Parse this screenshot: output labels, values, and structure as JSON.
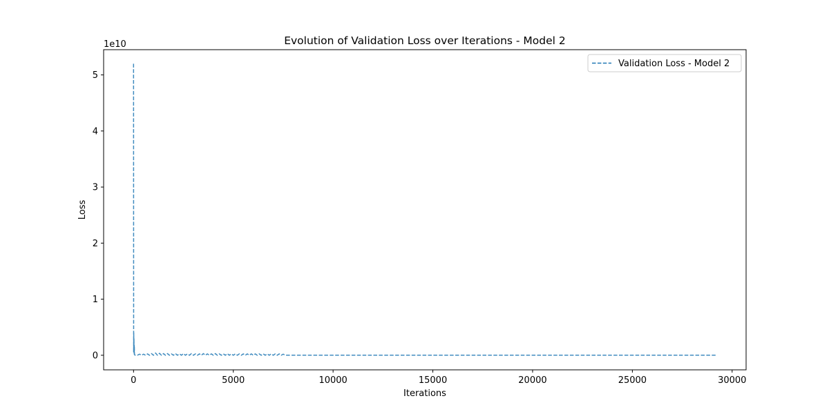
{
  "chart_data": {
    "type": "line",
    "title": "Evolution of Validation Loss over Iterations - Model 2",
    "xlabel": "Iterations",
    "ylabel": "Loss",
    "y_offset_text": "1e10",
    "xlim": [
      -1500,
      30700
    ],
    "ylim": [
      -0.26,
      5.45
    ],
    "y_scale_factor": 10000000000.0,
    "x_ticks": [
      0,
      5000,
      10000,
      15000,
      20000,
      25000,
      30000
    ],
    "x_tick_labels": [
      "0",
      "5000",
      "10000",
      "15000",
      "20000",
      "25000",
      "30000"
    ],
    "y_ticks": [
      0,
      1,
      2,
      3,
      4,
      5
    ],
    "y_tick_labels": [
      "0",
      "1",
      "2",
      "3",
      "4",
      "5"
    ],
    "grid": false,
    "legend_position": "top-right",
    "series": [
      {
        "name": "Validation Loss - Model 2",
        "color": "#1f77b4",
        "line_style": "dashed",
        "x": [
          0,
          5,
          10,
          15,
          20,
          25,
          30,
          35,
          40,
          45,
          50,
          60,
          80,
          120,
          200,
          300,
          400,
          500,
          600,
          700,
          800,
          900,
          1000,
          1100,
          1200,
          1300,
          1400,
          1500,
          1600,
          1700,
          1800,
          1900,
          2000,
          2100,
          2200,
          2300,
          2400,
          2500,
          2600,
          2700,
          2800,
          2900,
          3000,
          3100,
          3200,
          3300,
          3400,
          3500,
          3600,
          3700,
          3800,
          3900,
          4000,
          4100,
          4200,
          4300,
          4400,
          4500,
          4600,
          4700,
          4800,
          4900,
          5000,
          5100,
          5200,
          5300,
          5400,
          5500,
          5600,
          5700,
          5800,
          5900,
          6000,
          6100,
          6200,
          6300,
          6400,
          6500,
          6600,
          6700,
          6800,
          6900,
          7000,
          7100,
          7200,
          7300,
          7400,
          7500,
          7600,
          8000,
          10000,
          15000,
          20000,
          25000,
          29200
        ],
        "y": [
          5.2,
          0.05,
          0.4,
          0.1,
          0.3,
          0.05,
          0.2,
          0.02,
          0.15,
          0.03,
          0.01,
          0.005,
          0.003,
          0.003,
          0.002,
          0.02,
          0.0,
          0.02,
          0.0,
          0.025,
          0.0,
          0.03,
          0.0,
          0.04,
          0.0,
          0.035,
          0.0,
          0.03,
          0.0,
          0.03,
          0.0,
          0.025,
          0.0,
          0.03,
          0.0,
          0.025,
          0.0,
          0.03,
          0.0,
          0.025,
          0.0,
          0.03,
          0.0,
          0.025,
          0.0,
          0.025,
          0.0,
          0.03,
          0.0,
          0.025,
          0.0,
          0.025,
          0.0,
          0.03,
          0.0,
          0.025,
          0.0,
          0.025,
          0.0,
          0.03,
          0.0,
          0.025,
          0.0,
          0.025,
          0.0,
          0.025,
          0.0,
          0.025,
          0.0,
          0.025,
          0.0,
          0.025,
          0.0,
          0.025,
          0.0,
          0.025,
          0.0,
          0.025,
          0.0,
          0.025,
          0.0,
          0.025,
          0.0,
          0.025,
          0.0,
          0.025,
          0.0,
          0.02,
          0.001,
          0.001,
          0.001,
          0.001,
          0.001,
          0.001,
          0.001
        ]
      }
    ]
  }
}
